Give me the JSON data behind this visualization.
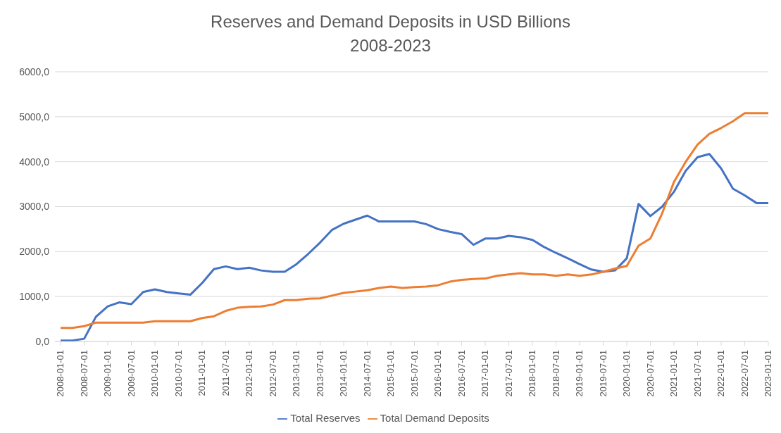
{
  "chart_data": {
    "type": "line",
    "title": "Reserves and Demand Deposits in USD Billions",
    "subtitle": "2008-2023",
    "categories": [
      "2008-01-01",
      null,
      "2008-07-01",
      null,
      "2009-01-01",
      null,
      "2009-07-01",
      null,
      "2010-01-01",
      null,
      "2010-07-01",
      null,
      "2011-01-01",
      null,
      "2011-07-01",
      null,
      "2012-01-01",
      null,
      "2012-07-01",
      null,
      "2013-01-01",
      null,
      "2013-07-01",
      null,
      "2014-01-01",
      null,
      "2014-07-01",
      null,
      "2015-01-01",
      null,
      "2015-07-01",
      null,
      "2016-01-01",
      null,
      "2016-07-01",
      null,
      "2017-01-01",
      null,
      "2017-07-01",
      null,
      "2018-01-01",
      null,
      "2018-07-01",
      null,
      "2019-01-01",
      null,
      "2019-07-01",
      null,
      "2020-01-01",
      null,
      "2020-07-01",
      null,
      "2021-01-01",
      null,
      "2021-07-01",
      null,
      "2022-01-01",
      null,
      "2022-07-01",
      null,
      "2023-01-01"
    ],
    "series": [
      {
        "name": "Total Reserves",
        "color": "#4472c4",
        "values": [
          20,
          20,
          60,
          550,
          780,
          870,
          830,
          1100,
          1160,
          1100,
          1070,
          1040,
          1300,
          1610,
          1670,
          1610,
          1640,
          1580,
          1550,
          1550,
          1720,
          1950,
          2200,
          2480,
          2620,
          2710,
          2800,
          2670,
          2670,
          2670,
          2670,
          2610,
          2500,
          2440,
          2390,
          2150,
          2290,
          2290,
          2350,
          2320,
          2260,
          2100,
          1970,
          1850,
          1720,
          1600,
          1550,
          1580,
          1850,
          3060,
          2790,
          3000,
          3330,
          3800,
          4100,
          4170,
          3850,
          3400,
          3250,
          3080,
          3080
        ]
      },
      {
        "name": "Total Demand Deposits",
        "color": "#ed7d31",
        "values": [
          300,
          300,
          340,
          420,
          420,
          420,
          420,
          420,
          450,
          450,
          450,
          450,
          520,
          560,
          680,
          750,
          770,
          780,
          820,
          920,
          920,
          950,
          960,
          1020,
          1080,
          1110,
          1140,
          1190,
          1220,
          1190,
          1210,
          1220,
          1250,
          1330,
          1370,
          1390,
          1400,
          1460,
          1490,
          1520,
          1490,
          1490,
          1460,
          1490,
          1460,
          1490,
          1550,
          1620,
          1680,
          2130,
          2290,
          2850,
          3550,
          4000,
          4380,
          4620,
          4750,
          4900,
          5080,
          5080,
          5080
        ]
      }
    ],
    "ylim": [
      0,
      6000
    ],
    "yticks": [
      {
        "value": 0,
        "label": "0,0"
      },
      {
        "value": 1000,
        "label": "1000,0"
      },
      {
        "value": 2000,
        "label": "2000,0"
      },
      {
        "value": 3000,
        "label": "3000,0"
      },
      {
        "value": 4000,
        "label": "4000,0"
      },
      {
        "value": 5000,
        "label": "5000,0"
      },
      {
        "value": 6000,
        "label": "6000,0"
      }
    ],
    "grid": "y",
    "legend": "bottom",
    "marker": "none",
    "line_style": "solid"
  }
}
